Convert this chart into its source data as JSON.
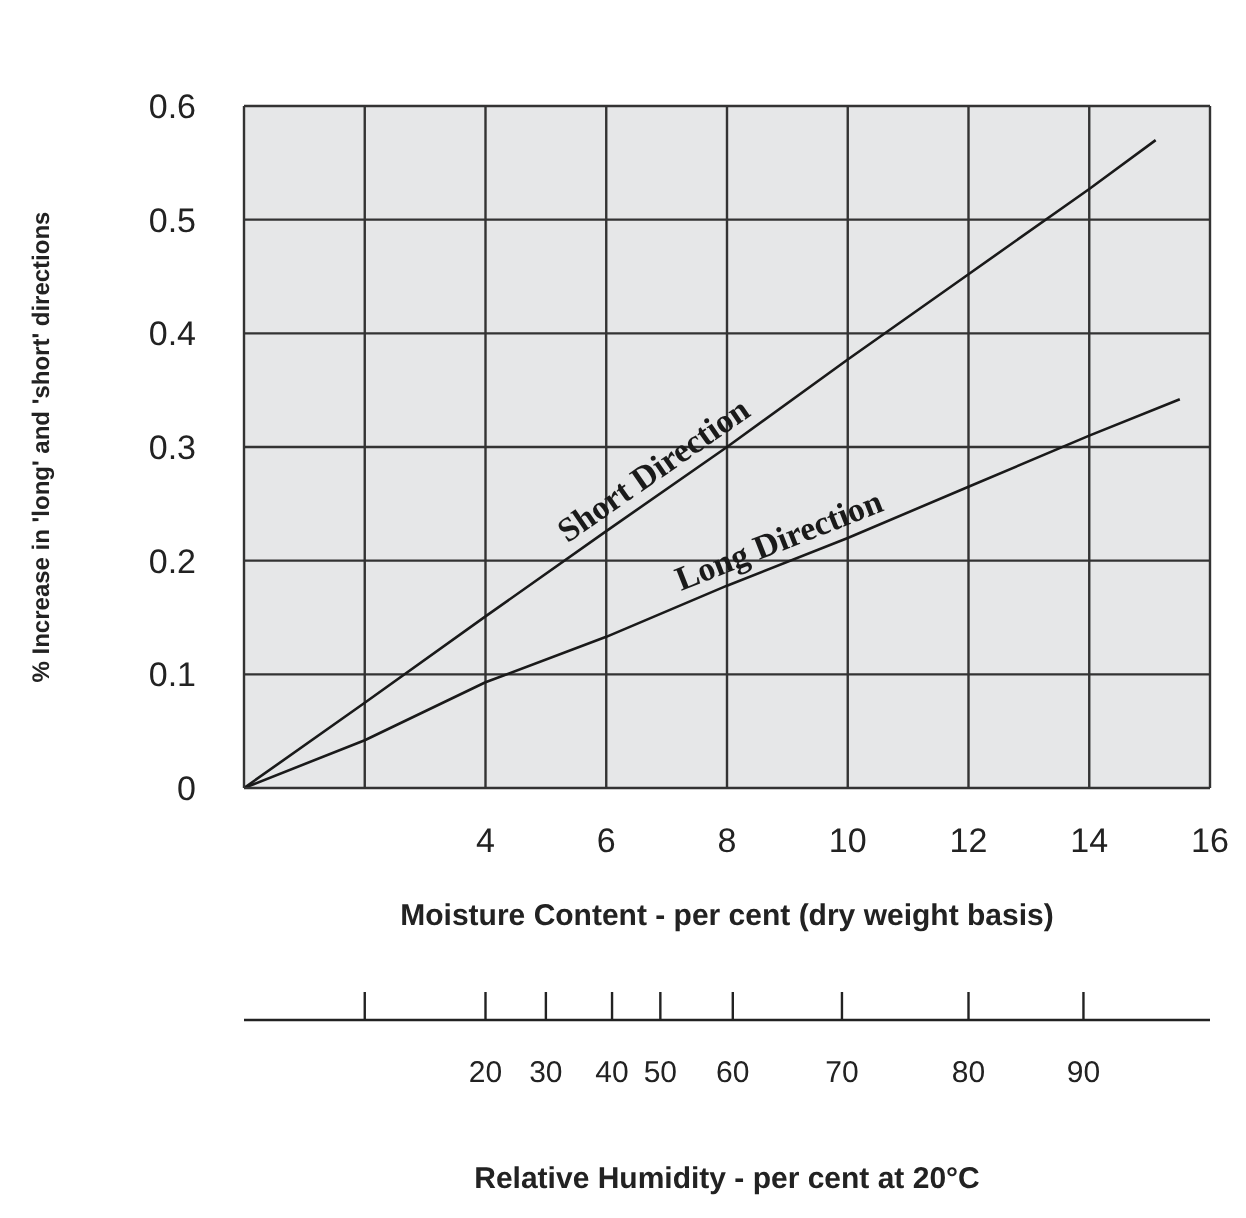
{
  "chart_data": {
    "type": "line",
    "xlabel": "Moisture Content - per cent (dry weight basis)",
    "ylabel": "% Increase in 'long' and 'short' directions",
    "annotations": [
      "20",
      "30",
      "40",
      "50",
      "60",
      "70",
      "80",
      "90",
      "Relative Humidity - per cent at 20°C"
    ],
    "xlim": [
      0,
      16
    ],
    "xticks": [
      {
        "value": 0,
        "label": null
      },
      {
        "value": 2,
        "label": null
      },
      4,
      6,
      8,
      10,
      12,
      14,
      16
    ],
    "ylim": [
      0,
      0.6
    ],
    "yticks": [
      0,
      0.1,
      0.2,
      0.3,
      0.4,
      0.5,
      0.6
    ],
    "grid": true,
    "marker": "none",
    "line_style": "solid",
    "series": [
      {
        "name": "Short Direction",
        "color": "#1a1a1a",
        "x": [
          0,
          2,
          4,
          6,
          8,
          10,
          12,
          14,
          15.1
        ],
        "values": [
          0,
          0.075,
          0.151,
          0.226,
          0.3,
          0.377,
          0.452,
          0.527,
          0.57
        ]
      },
      {
        "name": "Long Direction",
        "color": "#1a1a1a",
        "x": [
          0,
          2,
          4,
          6,
          8,
          10,
          12,
          14,
          15.5
        ],
        "values": [
          0,
          0.042,
          0.093,
          0.133,
          0.178,
          0.22,
          0.265,
          0.31,
          0.342
        ]
      }
    ]
  }
}
